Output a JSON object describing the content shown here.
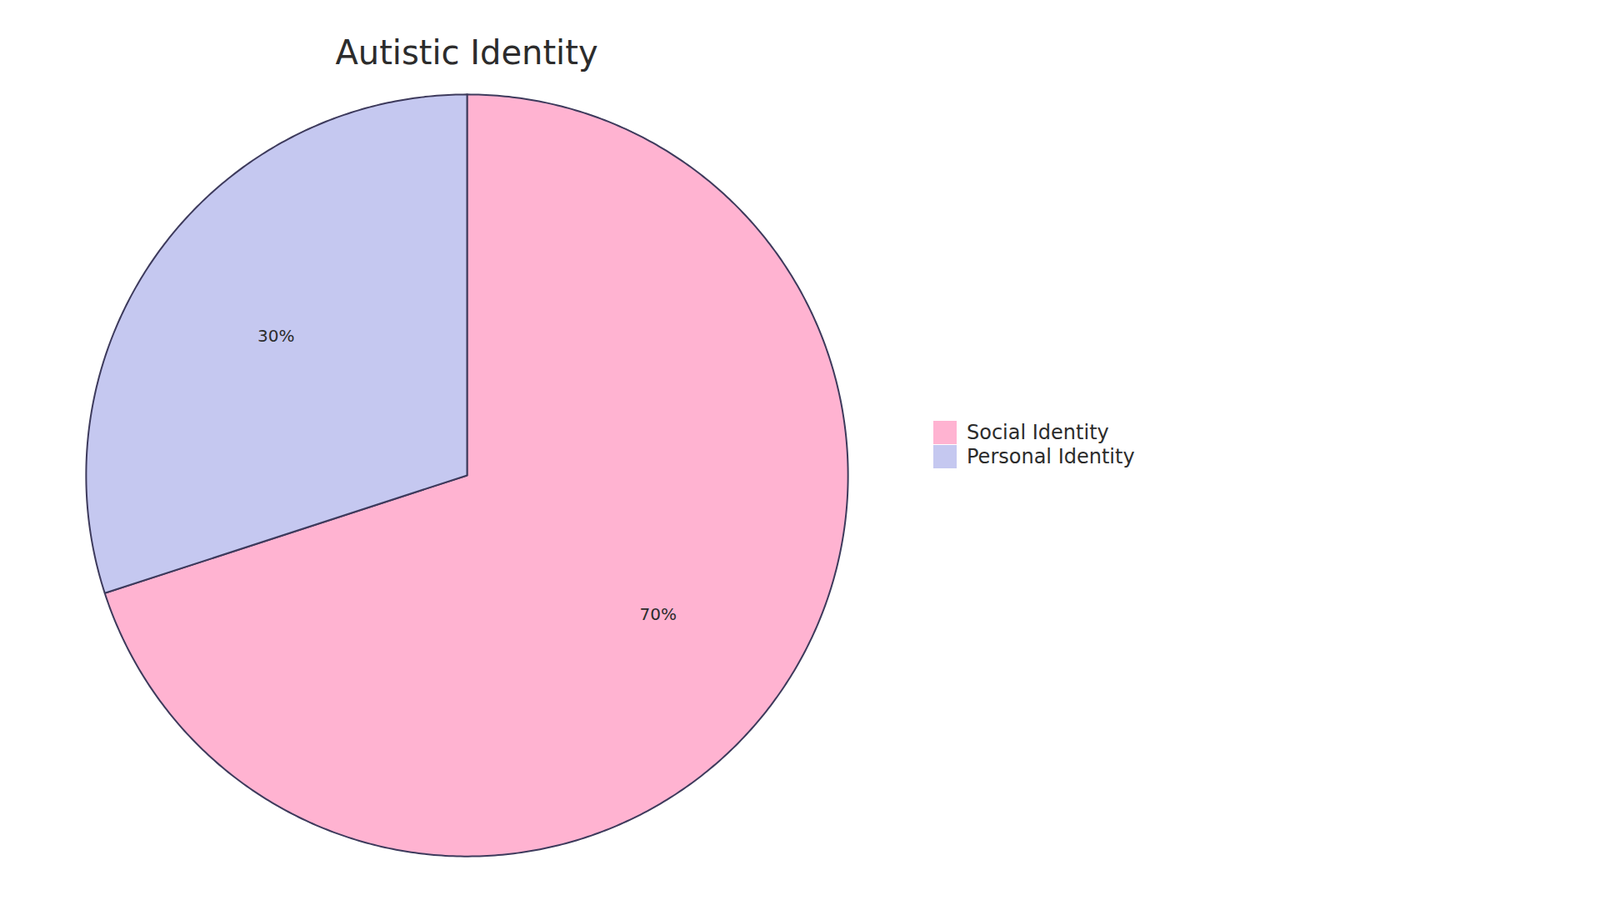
{
  "chart_data": {
    "type": "pie",
    "title": "Autistic Identity",
    "categories": [
      "Social Identity",
      "Personal Identity"
    ],
    "values": [
      70,
      30
    ],
    "value_labels": [
      "70%",
      "30%"
    ],
    "colors": [
      "#FFB3D1",
      "#C5C8F0"
    ],
    "data_labels": true,
    "legend": "right"
  }
}
